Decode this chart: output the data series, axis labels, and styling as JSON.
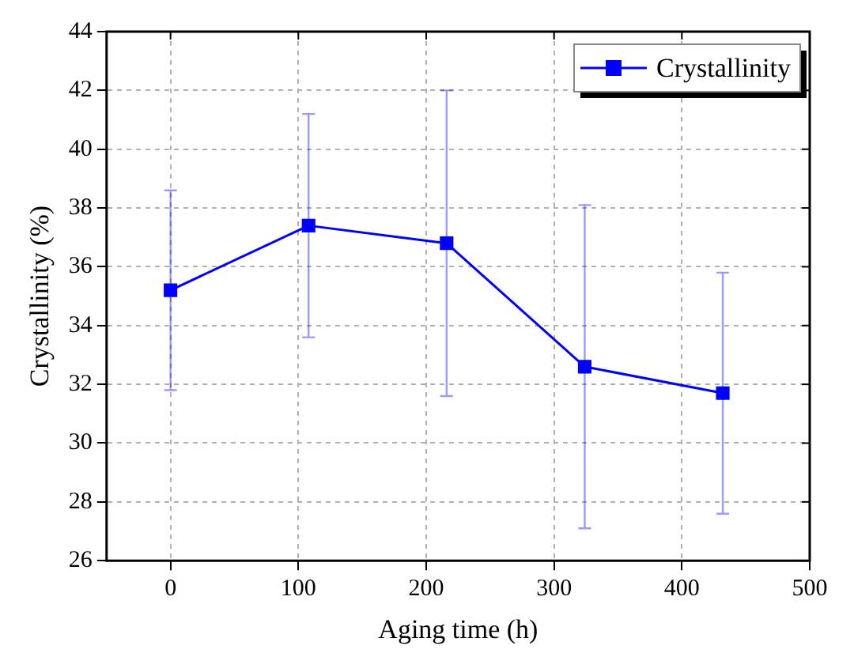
{
  "chart_data": {
    "type": "line",
    "xlabel": "Aging time (h)",
    "ylabel": "Crystallinity (%)",
    "x": [
      0,
      108,
      216,
      324,
      432
    ],
    "series": [
      {
        "name": "Crystallinity",
        "color": "#0000ff",
        "values": [
          35.2,
          37.4,
          36.8,
          32.6,
          31.7
        ],
        "errors": [
          [
            31.8,
            38.6
          ],
          [
            33.6,
            41.2
          ],
          [
            31.6,
            42.0
          ],
          [
            27.1,
            38.1
          ],
          [
            27.6,
            35.8
          ]
        ]
      }
    ],
    "xlim": [
      -50,
      500
    ],
    "xticks": [
      0,
      100,
      200,
      300,
      400,
      500
    ],
    "ylim": [
      26,
      44
    ],
    "yticks": [
      26,
      28,
      30,
      32,
      34,
      36,
      38,
      40,
      42,
      44
    ],
    "grid": true,
    "legend": "top right",
    "marker": "square",
    "line_style": "solid"
  }
}
